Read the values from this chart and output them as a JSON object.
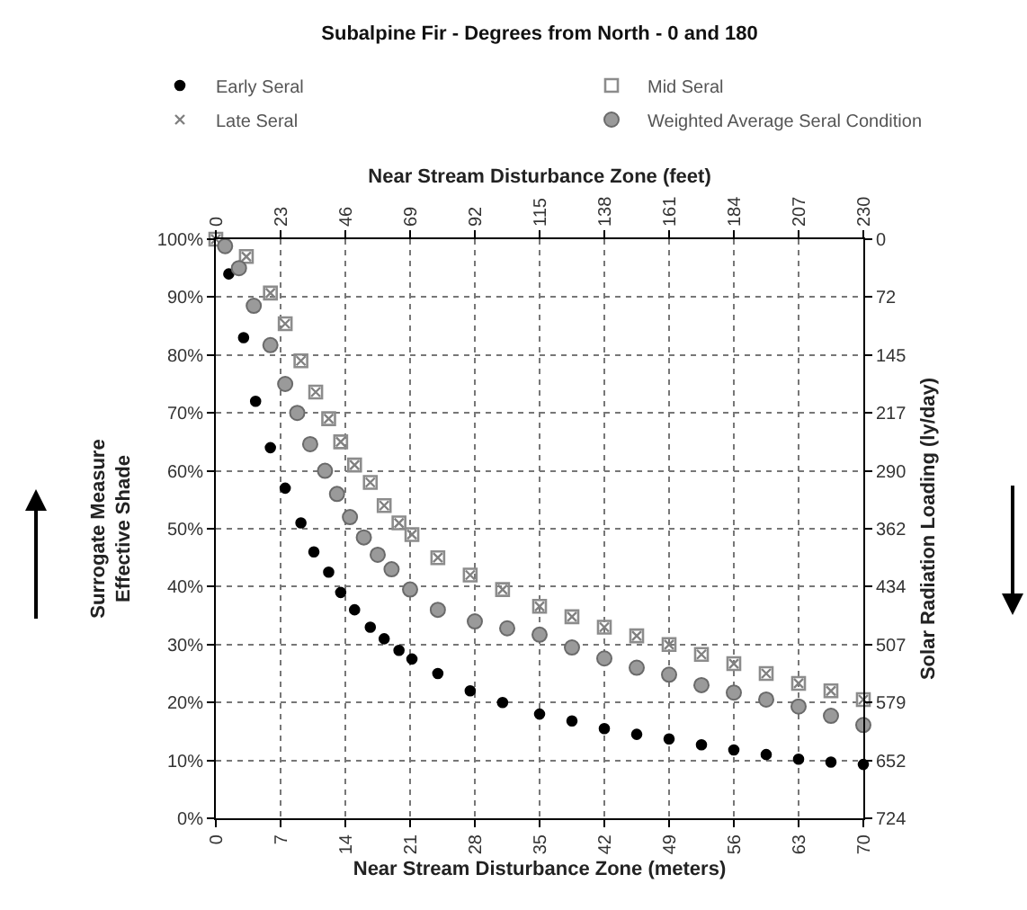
{
  "chart_data": {
    "type": "scatter",
    "title": "Subalpine Fir - Degrees from North - 0 and 180",
    "xlabel": "Near Stream Disturbance Zone (meters)",
    "x2label": "Near Stream Disturbance Zone (feet)",
    "ylabel": "Surrogate Measure\nEffective Shade",
    "y2label": "Solar Radiation Loading (ly/day)",
    "xlim": [
      0,
      70
    ],
    "xticks": [
      0,
      7,
      14,
      21,
      28,
      35,
      42,
      49,
      56,
      63,
      70
    ],
    "x2lim": [
      0,
      230
    ],
    "x2ticks": [
      0,
      23,
      46,
      69,
      92,
      115,
      138,
      161,
      184,
      207,
      230
    ],
    "ylim": [
      0,
      100
    ],
    "yticks": [
      {
        "value": 0,
        "label": "0%"
      },
      {
        "value": 10,
        "label": "10%"
      },
      {
        "value": 20,
        "label": "20%"
      },
      {
        "value": 30,
        "label": "30%"
      },
      {
        "value": 40,
        "label": "40%"
      },
      {
        "value": 50,
        "label": "50%"
      },
      {
        "value": 60,
        "label": "60%"
      },
      {
        "value": 70,
        "label": "70%"
      },
      {
        "value": 80,
        "label": "80%"
      },
      {
        "value": 90,
        "label": "90%"
      },
      {
        "value": 100,
        "label": "100%"
      }
    ],
    "y2lim": [
      724,
      0
    ],
    "y2ticks": [
      0,
      72,
      145,
      217,
      290,
      362,
      434,
      507,
      579,
      652,
      724
    ],
    "grid": true,
    "legend": "top",
    "series": [
      {
        "name": "Early Seral",
        "color": "#000000",
        "marker": "circle",
        "x": [
          1.4,
          3,
          4.3,
          5.9,
          7.5,
          9.2,
          10.6,
          12.2,
          13.5,
          15,
          16.7,
          18.2,
          19.8,
          21.2,
          24,
          27.5,
          31,
          35,
          38.5,
          42,
          45.5,
          49,
          52.5,
          56,
          59.5,
          63,
          66.5,
          70
        ],
        "values": [
          94,
          83,
          72,
          64,
          57,
          51,
          46,
          42.5,
          39,
          36,
          33,
          31,
          29,
          27.5,
          25,
          22,
          20,
          18,
          16.8,
          15.5,
          14.5,
          13.7,
          12.7,
          11.8,
          11,
          10.2,
          9.7,
          9.3
        ]
      },
      {
        "name": "Mid Seral",
        "color": "#8c8c8c",
        "marker": "square",
        "x": [
          0,
          1.5,
          3.3,
          5.9,
          7.5,
          9.2,
          10.8,
          12.2,
          13.5,
          15,
          16.7,
          18.2,
          19.8,
          21.2,
          24,
          27.5,
          31,
          35,
          38.5,
          42,
          45.5,
          49,
          52.5,
          56,
          59.5,
          63,
          66.5,
          70
        ],
        "values": [
          100,
          null,
          97,
          90.7,
          85.4,
          79,
          73.6,
          69,
          65,
          61,
          58,
          54,
          51,
          49,
          45,
          42,
          39.5,
          36.6,
          34.8,
          33,
          31.5,
          30,
          28.3,
          26.7,
          25,
          23.3,
          22,
          20.5
        ]
      },
      {
        "name": "Late Seral",
        "color": "#808080",
        "marker": "cross",
        "x": [
          0,
          1.5,
          3.3,
          5.9,
          7.5,
          9.2,
          10.8,
          12.2,
          13.5,
          15,
          16.7,
          18.2,
          19.8,
          21.2,
          24,
          27.5,
          31,
          35,
          38.5,
          42,
          45.5,
          49,
          52.5,
          56,
          59.5,
          63,
          66.5,
          70
        ],
        "values": [
          100,
          null,
          97,
          90.7,
          85.4,
          79,
          73.6,
          69,
          65,
          61,
          58,
          54,
          51,
          49,
          45,
          42,
          39.5,
          36.6,
          34.8,
          33,
          31.5,
          30,
          28.3,
          26.7,
          25,
          23.3,
          22,
          20.5
        ]
      },
      {
        "name": "Weighted Average Seral Condition",
        "color": "#9a9a9a",
        "marker": "circle",
        "x": [
          1,
          2.5,
          4.1,
          5.9,
          7.5,
          8.8,
          10.2,
          11.8,
          13.1,
          14.5,
          16,
          17.5,
          19,
          21,
          24,
          28,
          31.5,
          35,
          38.5,
          42,
          45.5,
          49,
          52.5,
          56,
          59.5,
          63,
          66.5,
          70
        ],
        "values": [
          98.8,
          95,
          88.5,
          81.7,
          75,
          70,
          64.6,
          60,
          56,
          52,
          48.5,
          45.5,
          43,
          39.5,
          36,
          34,
          32.8,
          31.7,
          29.5,
          27.6,
          26,
          24.8,
          23,
          21.7,
          20.5,
          19.3,
          17.7,
          16.1
        ]
      }
    ]
  }
}
